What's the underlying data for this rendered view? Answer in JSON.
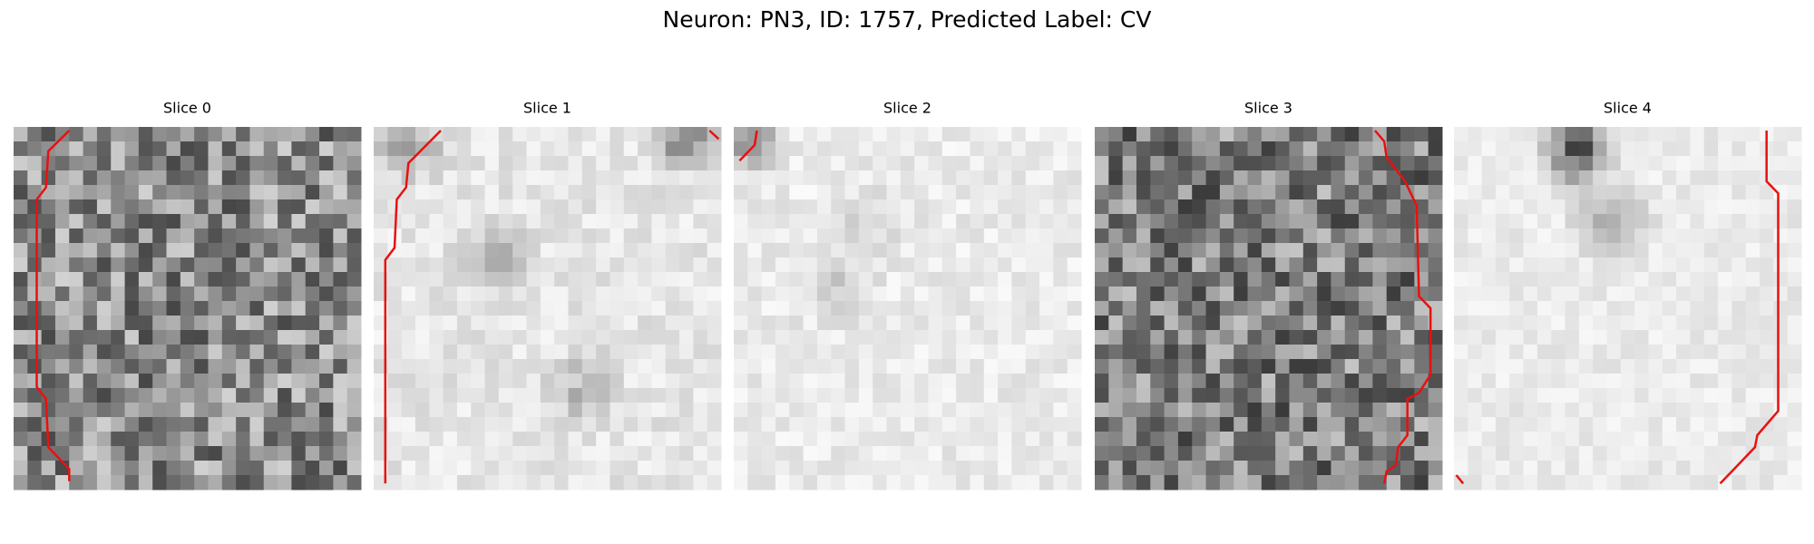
{
  "title": "Neuron: PN3, ID: 1757, Predicted Label: CV",
  "panels": [
    {
      "title": "Slice 0"
    },
    {
      "title": "Slice 1"
    },
    {
      "title": "Slice 2"
    },
    {
      "title": "Slice 3"
    },
    {
      "title": "Slice 4"
    }
  ]
}
